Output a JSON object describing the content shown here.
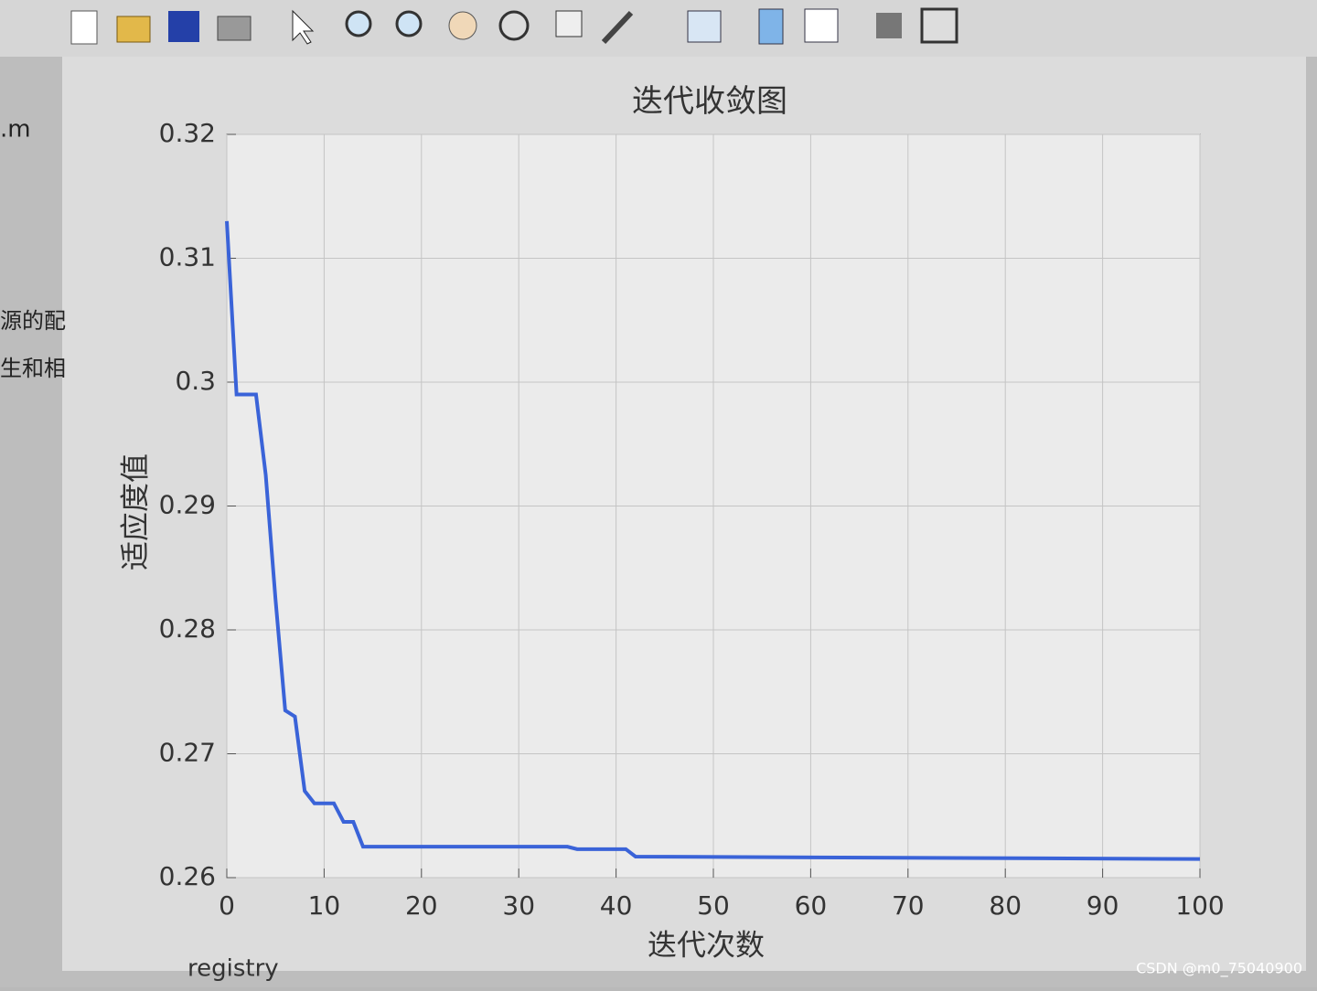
{
  "chart_data": {
    "type": "line",
    "title": "迭代收敛图",
    "x_label": "迭代次数",
    "y_label": "适应度值",
    "x": [
      0,
      1,
      3,
      4,
      5,
      6,
      7,
      8,
      9,
      11,
      12,
      13,
      14,
      35,
      36,
      41,
      42,
      100
    ],
    "series": [
      {
        "color": "#3a63d8",
        "values": [
          0.313,
          0.299,
          0.299,
          0.2925,
          0.2825,
          0.2735,
          0.273,
          0.267,
          0.266,
          0.266,
          0.2645,
          0.2645,
          0.2625,
          0.2625,
          0.2623,
          0.2623,
          0.2617,
          0.2615
        ]
      }
    ],
    "xlim": [
      0,
      100
    ],
    "xticks": [
      0,
      10,
      20,
      30,
      40,
      50,
      60,
      70,
      80,
      90,
      100
    ],
    "ylim": [
      0.26,
      0.32
    ],
    "yticks": [
      0.26,
      0.27,
      0.28,
      0.29,
      0.3,
      0.31,
      0.32
    ],
    "grid": true
  },
  "side_texts": [
    ".m",
    "源的配",
    "生和相"
  ],
  "footer_text": "registry",
  "watermark": "CSDN @m0_75040900"
}
